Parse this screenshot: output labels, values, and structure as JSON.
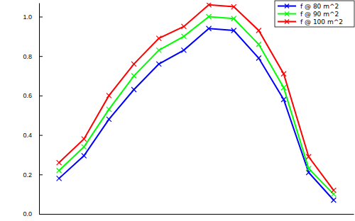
{
  "chart_data": {
    "type": "line",
    "tick_labels": "y",
    "legend": "top-right",
    "marker": "x",
    "line_style": "solid",
    "x": [
      1,
      2,
      3,
      4,
      5,
      6,
      7,
      8,
      9,
      10,
      11,
      12
    ],
    "xlim": [
      0.2,
      12.8
    ],
    "ylim": [
      0,
      1.07
    ],
    "yticks": [
      {
        "value": 0,
        "label": "0.0"
      },
      {
        "value": 0.2,
        "label": "0.2"
      },
      {
        "value": 0.4,
        "label": "0.4"
      },
      {
        "value": 0.6,
        "label": "0.6"
      },
      {
        "value": 0.8,
        "label": "0.8"
      },
      {
        "value": 1.0,
        "label": "1.0"
      }
    ],
    "series": [
      {
        "name": "f @ 80 m^2",
        "color": "#0000ff",
        "values": [
          0.18,
          0.295,
          0.48,
          0.63,
          0.76,
          0.83,
          0.94,
          0.93,
          0.79,
          0.58,
          0.21,
          0.07
        ]
      },
      {
        "name": "f @ 90 m^2",
        "color": "#00ff00",
        "values": [
          0.22,
          0.34,
          0.53,
          0.7,
          0.83,
          0.9,
          1.0,
          0.99,
          0.86,
          0.64,
          0.23,
          0.1
        ]
      },
      {
        "name": "f @ 100 m^2",
        "color": "#ff0000",
        "values": [
          0.26,
          0.38,
          0.6,
          0.76,
          0.89,
          0.95,
          1.06,
          1.05,
          0.93,
          0.71,
          0.29,
          0.12
        ]
      }
    ]
  }
}
